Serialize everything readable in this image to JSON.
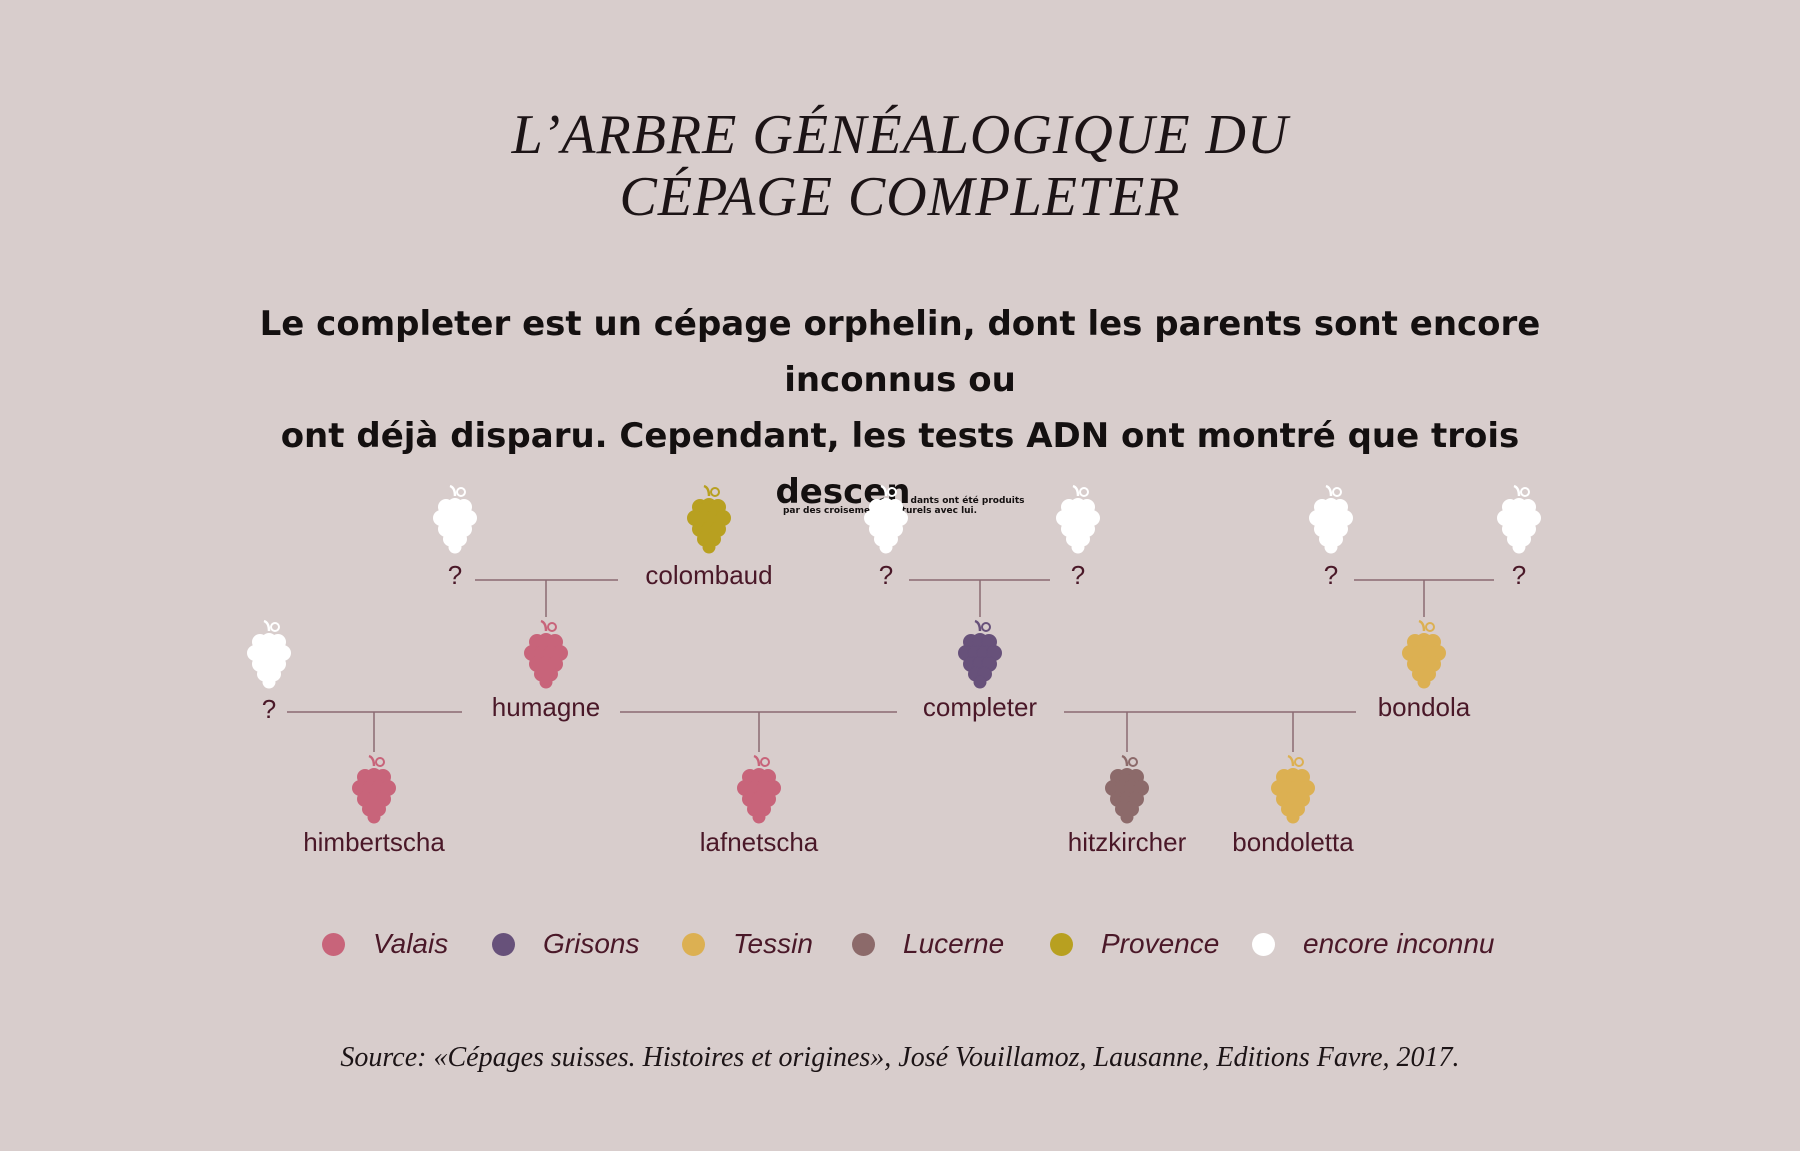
{
  "title": {
    "line1": "L’ARBRE GÉNÉALOGIQUE DU",
    "line2": "CÉPAGE COMPLETER"
  },
  "intro": {
    "line1": "Le completer est un cépage orphelin, dont les parents sont encore inconnus ou",
    "line2_main": "ont déjà disparu. Cependant, les tests ADN ont montré que trois descen",
    "line2_small": "dants ont été produits",
    "line3_small": "par des croisements naturels avec lui."
  },
  "colors": {
    "Valais": "#c8647a",
    "Grisons": "#67517a",
    "Tessin": "#dcb052",
    "Lucerne": "#8c6a6a",
    "Provence": "#b8a020",
    "encore inconnu": "#ffffff",
    "line": "#8a6a72",
    "text": "#4a1828"
  },
  "nodes": [
    {
      "id": "unk1",
      "label": "?",
      "region": "encore inconnu"
    },
    {
      "id": "colombaud",
      "label": "colombaud",
      "region": "Provence"
    },
    {
      "id": "unk2",
      "label": "?",
      "region": "encore inconnu"
    },
    {
      "id": "unk3",
      "label": "?",
      "region": "encore inconnu"
    },
    {
      "id": "unk4",
      "label": "?",
      "region": "encore inconnu"
    },
    {
      "id": "unk5",
      "label": "?",
      "region": "encore inconnu"
    },
    {
      "id": "unk6",
      "label": "?",
      "region": "encore inconnu"
    },
    {
      "id": "humagne",
      "label": "humagne",
      "region": "Valais"
    },
    {
      "id": "completer",
      "label": "completer",
      "region": "Grisons"
    },
    {
      "id": "bondola",
      "label": "bondola",
      "region": "Tessin"
    },
    {
      "id": "himbertscha",
      "label": "himbertscha",
      "region": "Valais"
    },
    {
      "id": "lafnetscha",
      "label": "lafnetscha",
      "region": "Valais"
    },
    {
      "id": "hitzkircher",
      "label": "hitzkircher",
      "region": "Lucerne"
    },
    {
      "id": "bondoletta",
      "label": "bondoletta",
      "region": "Tessin"
    }
  ],
  "crosses": [
    {
      "parents": [
        "unk1",
        "colombaud"
      ],
      "child": "humagne"
    },
    {
      "parents": [
        "unk2",
        "unk3"
      ],
      "child": "completer"
    },
    {
      "parents": [
        "unk4",
        "unk5"
      ],
      "child": "bondola"
    },
    {
      "parents": [
        "unk6",
        "humagne"
      ],
      "child": "himbertscha"
    },
    {
      "parents": [
        "humagne",
        "completer"
      ],
      "child": "lafnetscha"
    },
    {
      "parents": [
        "completer",
        "bondola"
      ],
      "children": [
        "hitzkircher",
        "bondoletta"
      ]
    }
  ],
  "legend": [
    {
      "label": "Valais",
      "color": "#c8647a"
    },
    {
      "label": "Grisons",
      "color": "#67517a"
    },
    {
      "label": "Tessin",
      "color": "#dcb052"
    },
    {
      "label": "Lucerne",
      "color": "#8c6a6a"
    },
    {
      "label": "Provence",
      "color": "#b8a020"
    },
    {
      "label": "encore inconnu",
      "color": "#ffffff"
    }
  ],
  "source": "Source: «Cépages suisses. Histoires et origines», José Vouillamoz, Lausanne, Editions Favre, 2017."
}
